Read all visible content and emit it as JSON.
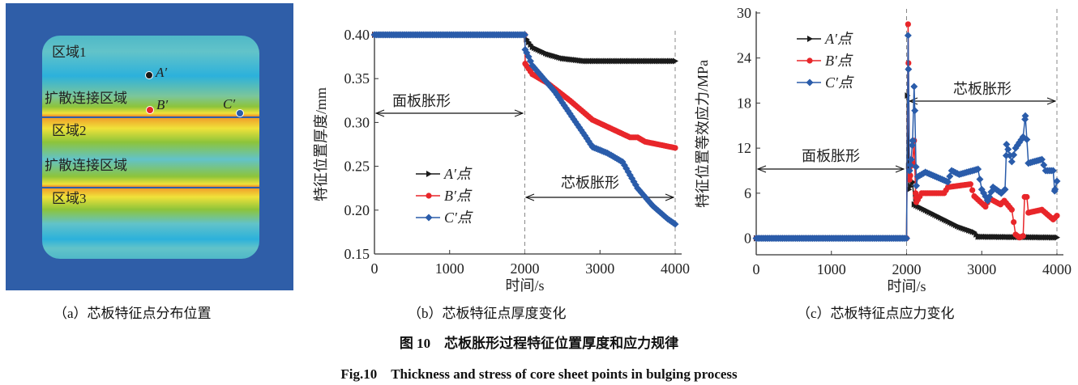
{
  "panel_a": {
    "labels": {
      "region1": "区域1",
      "diffusion1": "扩散连接区域",
      "region2": "区域2",
      "diffusion2": "扩散连接区域",
      "region3": "区域3"
    },
    "points": [
      {
        "name": "A′",
        "color": "#1a1a1a"
      },
      {
        "name": "B′",
        "color": "#e8262a"
      },
      {
        "name": "C′",
        "color": "#2a5caa"
      }
    ],
    "caption": "（a）芯板特征点分布位置"
  },
  "figure": {
    "title_cn": "图 10　芯板胀形过程特征位置厚度和应力规律",
    "title_en": "Fig.10　Thickness and stress of core sheet points in bulging process"
  },
  "chart_data": [
    {
      "type": "line",
      "caption": "（b）芯板特征点厚度变化",
      "xlabel": "时间/s",
      "ylabel": "特征位置厚度/mm",
      "xlim": [
        0,
        4000
      ],
      "ylim": [
        0.15,
        0.4
      ],
      "xticks": [
        "0",
        "1000",
        "2000",
        "3000",
        "4000"
      ],
      "yticks": [
        "0.15",
        "0.20",
        "0.25",
        "0.30",
        "0.35",
        "0.40"
      ],
      "legend_position": "lower-left",
      "annotations": [
        "面板胀形",
        "芯板胀形"
      ],
      "series": [
        {
          "name": "A′点",
          "color": "#1a1a1a",
          "marker": "triangle-right",
          "points": [
            [
              0,
              0.4
            ],
            [
              2000,
              0.4
            ],
            [
              2020,
              0.395
            ],
            [
              2100,
              0.386
            ],
            [
              2300,
              0.378
            ],
            [
              2500,
              0.373
            ],
            [
              2800,
              0.37
            ],
            [
              4000,
              0.37
            ]
          ]
        },
        {
          "name": "B′点",
          "color": "#e8262a",
          "marker": "circle",
          "points": [
            [
              0,
              0.4
            ],
            [
              2000,
              0.4
            ],
            [
              2005,
              0.367
            ],
            [
              2100,
              0.355
            ],
            [
              2300,
              0.345
            ],
            [
              2600,
              0.325
            ],
            [
              2900,
              0.303
            ],
            [
              3100,
              0.295
            ],
            [
              3400,
              0.283
            ],
            [
              3500,
              0.283
            ],
            [
              3600,
              0.278
            ],
            [
              4000,
              0.271
            ]
          ]
        },
        {
          "name": "C′点",
          "color": "#2a5caa",
          "marker": "diamond",
          "points": [
            [
              0,
              0.4
            ],
            [
              2000,
              0.4
            ],
            [
              2005,
              0.383
            ],
            [
              2050,
              0.375
            ],
            [
              2100,
              0.365
            ],
            [
              2400,
              0.335
            ],
            [
              2600,
              0.31
            ],
            [
              2800,
              0.285
            ],
            [
              2900,
              0.272
            ],
            [
              3100,
              0.265
            ],
            [
              3300,
              0.255
            ],
            [
              3500,
              0.225
            ],
            [
              3700,
              0.205
            ],
            [
              3900,
              0.19
            ],
            [
              4000,
              0.184
            ]
          ]
        }
      ]
    },
    {
      "type": "line",
      "caption": "（c）芯板特征点应力变化",
      "xlabel": "时间/s",
      "ylabel": "特征位置等效应力/MPa",
      "xlim": [
        0,
        4000
      ],
      "ylim": [
        -2.2,
        30
      ],
      "xticks": [
        "0",
        "1000",
        "2000",
        "3000",
        "4000"
      ],
      "yticks": [
        "0",
        "6",
        "12",
        "18",
        "24",
        "30"
      ],
      "legend_position": "top-left",
      "annotations": [
        "面板胀形",
        "芯板胀形"
      ],
      "series": [
        {
          "name": "A′点",
          "color": "#1a1a1a",
          "marker": "triangle-right",
          "points": [
            [
              0,
              0
            ],
            [
              2000,
              0
            ],
            [
              2010,
              19
            ],
            [
              2030,
              6.5
            ],
            [
              2080,
              7.5
            ],
            [
              2100,
              4.5
            ],
            [
              2300,
              3.5
            ],
            [
              2500,
              2.5
            ],
            [
              2700,
              1.5
            ],
            [
              2900,
              0.8
            ],
            [
              2950,
              0.2
            ],
            [
              4000,
              0.1
            ]
          ]
        },
        {
          "name": "B′点",
          "color": "#e8262a",
          "marker": "circle",
          "points": [
            [
              0,
              0
            ],
            [
              2000,
              0
            ],
            [
              2020,
              28.5
            ],
            [
              2040,
              7.8
            ],
            [
              2080,
              10
            ],
            [
              2100,
              13
            ],
            [
              2120,
              6
            ],
            [
              2130,
              4.8
            ],
            [
              2200,
              6
            ],
            [
              2500,
              6
            ],
            [
              2550,
              6.8
            ],
            [
              2850,
              7.2
            ],
            [
              2900,
              5.6
            ],
            [
              3050,
              4.2
            ],
            [
              3100,
              5.3
            ],
            [
              3250,
              4.5
            ],
            [
              3300,
              5
            ],
            [
              3400,
              3.8
            ],
            [
              3450,
              0.5
            ],
            [
              3500,
              0.1
            ],
            [
              3550,
              0.3
            ],
            [
              3570,
              5.5
            ],
            [
              3600,
              5.5
            ],
            [
              3620,
              3.4
            ],
            [
              3800,
              3.8
            ],
            [
              3950,
              2.5
            ],
            [
              4000,
              3
            ]
          ]
        },
        {
          "name": "C′点",
          "color": "#2a5caa",
          "marker": "diamond",
          "points": [
            [
              0,
              0
            ],
            [
              2000,
              0
            ],
            [
              2020,
              27
            ],
            [
              2040,
              9
            ],
            [
              2060,
              10.5
            ],
            [
              2080,
              13
            ],
            [
              2100,
              20.2
            ],
            [
              2110,
              17
            ],
            [
              2130,
              7
            ],
            [
              2150,
              8.2
            ],
            [
              2250,
              8.8
            ],
            [
              2550,
              7.5
            ],
            [
              2600,
              9
            ],
            [
              2700,
              8.5
            ],
            [
              2950,
              9.2
            ],
            [
              3000,
              6.5
            ],
            [
              3080,
              5
            ],
            [
              3150,
              6.8
            ],
            [
              3260,
              6
            ],
            [
              3310,
              6.5
            ],
            [
              3330,
              12.5
            ],
            [
              3400,
              10.2
            ],
            [
              3450,
              12
            ],
            [
              3550,
              13.5
            ],
            [
              3580,
              16.3
            ],
            [
              3620,
              10
            ],
            [
              3800,
              10.5
            ],
            [
              3850,
              9
            ],
            [
              3950,
              9
            ],
            [
              3970,
              6.3
            ],
            [
              4000,
              7.6
            ]
          ]
        }
      ]
    }
  ]
}
